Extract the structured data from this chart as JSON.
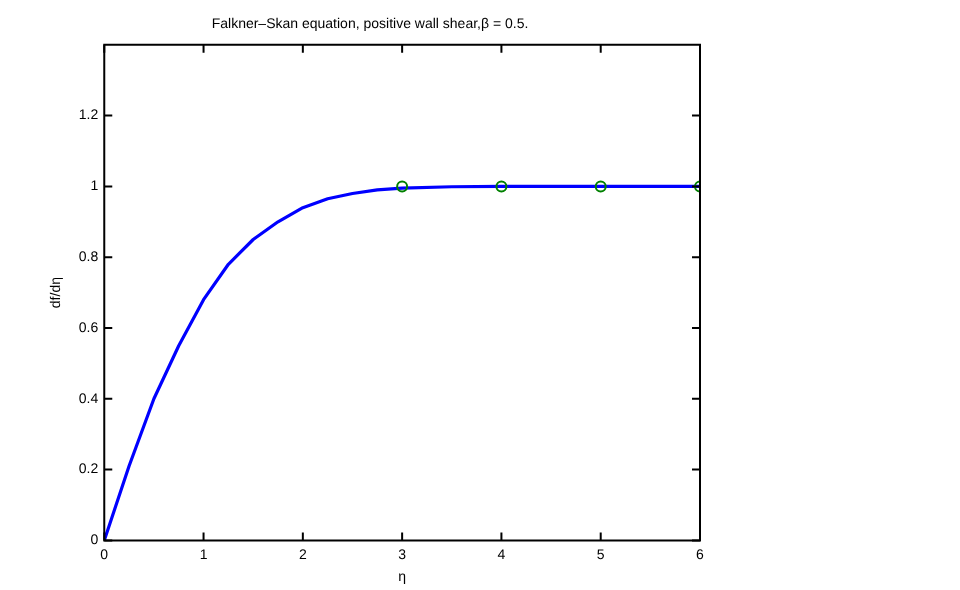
{
  "chart_data": {
    "type": "line",
    "title": "Falkner–Skan equation, positive wall shear,β = 0.5.",
    "xlabel": "η",
    "ylabel": "df/dη",
    "xlim": [
      0,
      6
    ],
    "xticks": [
      0,
      1,
      2,
      3,
      4,
      5,
      6
    ],
    "ylim": [
      0,
      1.4
    ],
    "yticks": [
      0,
      0.2,
      0.4,
      0.6,
      0.8,
      1,
      1.2
    ],
    "grid": false,
    "legend": false,
    "series": [
      {
        "color": "#0000ff",
        "marker": "none",
        "x": [
          0,
          0.25,
          0.5,
          0.75,
          1,
          1.25,
          1.5,
          1.75,
          2,
          2.25,
          2.5,
          2.75,
          3,
          3.5,
          4,
          5,
          6
        ],
        "values": [
          0,
          0.21,
          0.4,
          0.55,
          0.68,
          0.78,
          0.85,
          0.9,
          0.94,
          0.965,
          0.98,
          0.99,
          0.995,
          0.999,
          1,
          1,
          1
        ]
      },
      {
        "type": "scatter",
        "color": "#008000",
        "marker": "circle",
        "x": [
          3,
          4,
          5,
          6
        ],
        "values": [
          1,
          1,
          1,
          1
        ]
      }
    ]
  }
}
